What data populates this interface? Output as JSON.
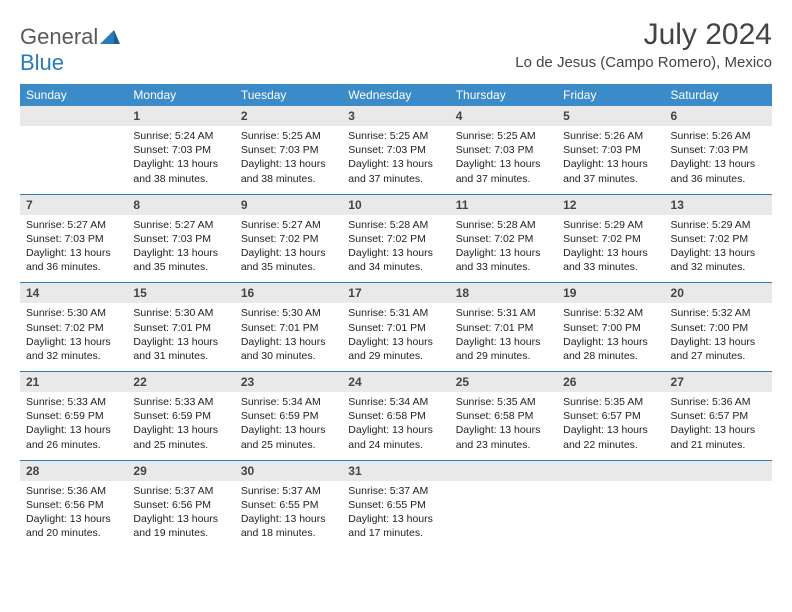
{
  "brand": {
    "part1": "General",
    "part2": "Blue"
  },
  "title": "July 2024",
  "location": "Lo de Jesus (Campo Romero), Mexico",
  "colors": {
    "header_bg": "#3b8bc9",
    "daynum_bg": "#e9e9e9",
    "week_border": "#2a7ab8",
    "brand_gray": "#5a5a5a",
    "brand_blue": "#2a7ab8"
  },
  "day_names": [
    "Sunday",
    "Monday",
    "Tuesday",
    "Wednesday",
    "Thursday",
    "Friday",
    "Saturday"
  ],
  "weeks": [
    [
      {
        "n": "",
        "sr": "",
        "ss": "",
        "dl": ""
      },
      {
        "n": "1",
        "sr": "Sunrise: 5:24 AM",
        "ss": "Sunset: 7:03 PM",
        "dl": "Daylight: 13 hours and 38 minutes."
      },
      {
        "n": "2",
        "sr": "Sunrise: 5:25 AM",
        "ss": "Sunset: 7:03 PM",
        "dl": "Daylight: 13 hours and 38 minutes."
      },
      {
        "n": "3",
        "sr": "Sunrise: 5:25 AM",
        "ss": "Sunset: 7:03 PM",
        "dl": "Daylight: 13 hours and 37 minutes."
      },
      {
        "n": "4",
        "sr": "Sunrise: 5:25 AM",
        "ss": "Sunset: 7:03 PM",
        "dl": "Daylight: 13 hours and 37 minutes."
      },
      {
        "n": "5",
        "sr": "Sunrise: 5:26 AM",
        "ss": "Sunset: 7:03 PM",
        "dl": "Daylight: 13 hours and 37 minutes."
      },
      {
        "n": "6",
        "sr": "Sunrise: 5:26 AM",
        "ss": "Sunset: 7:03 PM",
        "dl": "Daylight: 13 hours and 36 minutes."
      }
    ],
    [
      {
        "n": "7",
        "sr": "Sunrise: 5:27 AM",
        "ss": "Sunset: 7:03 PM",
        "dl": "Daylight: 13 hours and 36 minutes."
      },
      {
        "n": "8",
        "sr": "Sunrise: 5:27 AM",
        "ss": "Sunset: 7:03 PM",
        "dl": "Daylight: 13 hours and 35 minutes."
      },
      {
        "n": "9",
        "sr": "Sunrise: 5:27 AM",
        "ss": "Sunset: 7:02 PM",
        "dl": "Daylight: 13 hours and 35 minutes."
      },
      {
        "n": "10",
        "sr": "Sunrise: 5:28 AM",
        "ss": "Sunset: 7:02 PM",
        "dl": "Daylight: 13 hours and 34 minutes."
      },
      {
        "n": "11",
        "sr": "Sunrise: 5:28 AM",
        "ss": "Sunset: 7:02 PM",
        "dl": "Daylight: 13 hours and 33 minutes."
      },
      {
        "n": "12",
        "sr": "Sunrise: 5:29 AM",
        "ss": "Sunset: 7:02 PM",
        "dl": "Daylight: 13 hours and 33 minutes."
      },
      {
        "n": "13",
        "sr": "Sunrise: 5:29 AM",
        "ss": "Sunset: 7:02 PM",
        "dl": "Daylight: 13 hours and 32 minutes."
      }
    ],
    [
      {
        "n": "14",
        "sr": "Sunrise: 5:30 AM",
        "ss": "Sunset: 7:02 PM",
        "dl": "Daylight: 13 hours and 32 minutes."
      },
      {
        "n": "15",
        "sr": "Sunrise: 5:30 AM",
        "ss": "Sunset: 7:01 PM",
        "dl": "Daylight: 13 hours and 31 minutes."
      },
      {
        "n": "16",
        "sr": "Sunrise: 5:30 AM",
        "ss": "Sunset: 7:01 PM",
        "dl": "Daylight: 13 hours and 30 minutes."
      },
      {
        "n": "17",
        "sr": "Sunrise: 5:31 AM",
        "ss": "Sunset: 7:01 PM",
        "dl": "Daylight: 13 hours and 29 minutes."
      },
      {
        "n": "18",
        "sr": "Sunrise: 5:31 AM",
        "ss": "Sunset: 7:01 PM",
        "dl": "Daylight: 13 hours and 29 minutes."
      },
      {
        "n": "19",
        "sr": "Sunrise: 5:32 AM",
        "ss": "Sunset: 7:00 PM",
        "dl": "Daylight: 13 hours and 28 minutes."
      },
      {
        "n": "20",
        "sr": "Sunrise: 5:32 AM",
        "ss": "Sunset: 7:00 PM",
        "dl": "Daylight: 13 hours and 27 minutes."
      }
    ],
    [
      {
        "n": "21",
        "sr": "Sunrise: 5:33 AM",
        "ss": "Sunset: 6:59 PM",
        "dl": "Daylight: 13 hours and 26 minutes."
      },
      {
        "n": "22",
        "sr": "Sunrise: 5:33 AM",
        "ss": "Sunset: 6:59 PM",
        "dl": "Daylight: 13 hours and 25 minutes."
      },
      {
        "n": "23",
        "sr": "Sunrise: 5:34 AM",
        "ss": "Sunset: 6:59 PM",
        "dl": "Daylight: 13 hours and 25 minutes."
      },
      {
        "n": "24",
        "sr": "Sunrise: 5:34 AM",
        "ss": "Sunset: 6:58 PM",
        "dl": "Daylight: 13 hours and 24 minutes."
      },
      {
        "n": "25",
        "sr": "Sunrise: 5:35 AM",
        "ss": "Sunset: 6:58 PM",
        "dl": "Daylight: 13 hours and 23 minutes."
      },
      {
        "n": "26",
        "sr": "Sunrise: 5:35 AM",
        "ss": "Sunset: 6:57 PM",
        "dl": "Daylight: 13 hours and 22 minutes."
      },
      {
        "n": "27",
        "sr": "Sunrise: 5:36 AM",
        "ss": "Sunset: 6:57 PM",
        "dl": "Daylight: 13 hours and 21 minutes."
      }
    ],
    [
      {
        "n": "28",
        "sr": "Sunrise: 5:36 AM",
        "ss": "Sunset: 6:56 PM",
        "dl": "Daylight: 13 hours and 20 minutes."
      },
      {
        "n": "29",
        "sr": "Sunrise: 5:37 AM",
        "ss": "Sunset: 6:56 PM",
        "dl": "Daylight: 13 hours and 19 minutes."
      },
      {
        "n": "30",
        "sr": "Sunrise: 5:37 AM",
        "ss": "Sunset: 6:55 PM",
        "dl": "Daylight: 13 hours and 18 minutes."
      },
      {
        "n": "31",
        "sr": "Sunrise: 5:37 AM",
        "ss": "Sunset: 6:55 PM",
        "dl": "Daylight: 13 hours and 17 minutes."
      },
      {
        "n": "",
        "sr": "",
        "ss": "",
        "dl": ""
      },
      {
        "n": "",
        "sr": "",
        "ss": "",
        "dl": ""
      },
      {
        "n": "",
        "sr": "",
        "ss": "",
        "dl": ""
      }
    ]
  ]
}
